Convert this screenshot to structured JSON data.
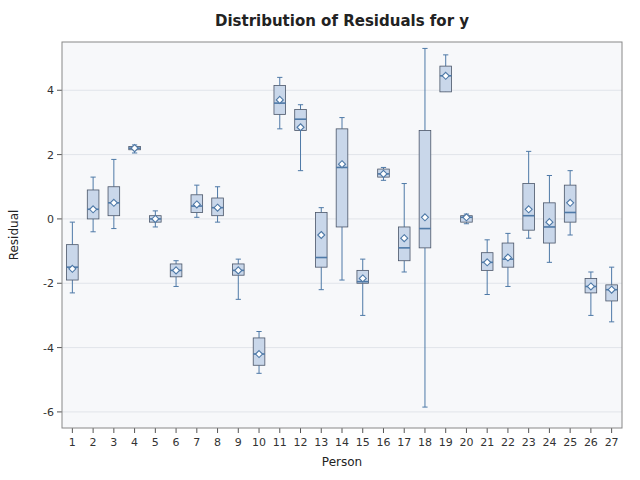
{
  "chart_data": {
    "type": "box",
    "title": "Distribution of Residuals for y",
    "x_label": "Person",
    "y_label": "Residual",
    "ylim": [
      -6.5,
      5.5
    ],
    "yticks": [
      -6,
      -4,
      -2,
      0,
      2,
      4
    ],
    "grid": true,
    "marker": "diamond",
    "categories": [
      "1",
      "2",
      "3",
      "4",
      "5",
      "6",
      "7",
      "8",
      "9",
      "10",
      "11",
      "12",
      "13",
      "14",
      "15",
      "16",
      "17",
      "18",
      "19",
      "20",
      "21",
      "22",
      "23",
      "24",
      "25",
      "26",
      "27"
    ],
    "boxes": [
      {
        "q1": -1.9,
        "median": -1.5,
        "q3": -0.8,
        "whislo": -2.3,
        "whishi": -0.1,
        "mean": -1.55
      },
      {
        "q1": 0.0,
        "median": 0.3,
        "q3": 0.9,
        "whislo": -0.4,
        "whishi": 1.3,
        "mean": 0.3
      },
      {
        "q1": 0.1,
        "median": 0.5,
        "q3": 1.0,
        "whislo": -0.3,
        "whishi": 1.85,
        "mean": 0.5
      },
      {
        "q1": 2.15,
        "median": 2.2,
        "q3": 2.25,
        "whislo": 2.05,
        "whishi": 2.3,
        "mean": 2.2
      },
      {
        "q1": -0.1,
        "median": 0.0,
        "q3": 0.1,
        "whislo": -0.25,
        "whishi": 0.25,
        "mean": 0.0
      },
      {
        "q1": -1.8,
        "median": -1.6,
        "q3": -1.4,
        "whislo": -2.1,
        "whishi": -1.3,
        "mean": -1.6
      },
      {
        "q1": 0.2,
        "median": 0.4,
        "q3": 0.75,
        "whislo": 0.05,
        "whishi": 1.05,
        "mean": 0.45
      },
      {
        "q1": 0.1,
        "median": 0.35,
        "q3": 0.65,
        "whislo": -0.1,
        "whishi": 1.0,
        "mean": 0.35
      },
      {
        "q1": -1.75,
        "median": -1.6,
        "q3": -1.4,
        "whislo": -2.5,
        "whishi": -1.25,
        "mean": -1.6
      },
      {
        "q1": -4.55,
        "median": -4.2,
        "q3": -3.7,
        "whislo": -4.8,
        "whishi": -3.5,
        "mean": -4.2
      },
      {
        "q1": 3.25,
        "median": 3.6,
        "q3": 4.15,
        "whislo": 2.8,
        "whishi": 4.4,
        "mean": 3.7
      },
      {
        "q1": 2.75,
        "median": 3.1,
        "q3": 3.4,
        "whislo": 1.5,
        "whishi": 3.55,
        "mean": 2.85
      },
      {
        "q1": -1.5,
        "median": -1.2,
        "q3": 0.2,
        "whislo": -2.2,
        "whishi": 0.35,
        "mean": -0.5
      },
      {
        "q1": -0.25,
        "median": 1.6,
        "q3": 2.8,
        "whislo": -1.9,
        "whishi": 3.15,
        "mean": 1.7
      },
      {
        "q1": -2.0,
        "median": -1.95,
        "q3": -1.6,
        "whislo": -3.0,
        "whishi": -1.25,
        "mean": -1.85
      },
      {
        "q1": 1.3,
        "median": 1.4,
        "q3": 1.55,
        "whislo": 1.2,
        "whishi": 1.6,
        "mean": 1.4
      },
      {
        "q1": -1.3,
        "median": -0.9,
        "q3": -0.25,
        "whislo": -1.65,
        "whishi": 1.1,
        "mean": -0.6
      },
      {
        "q1": -0.9,
        "median": -0.3,
        "q3": 2.75,
        "whislo": -5.85,
        "whishi": 5.3,
        "mean": 0.05
      },
      {
        "q1": 3.95,
        "median": 4.45,
        "q3": 4.75,
        "whislo": 4.1,
        "whishi": 5.1,
        "mean": 4.45
      },
      {
        "q1": -0.1,
        "median": 0.05,
        "q3": 0.1,
        "whislo": -0.15,
        "whishi": 0.15,
        "mean": 0.05
      },
      {
        "q1": -1.6,
        "median": -1.35,
        "q3": -1.05,
        "whislo": -2.35,
        "whishi": -0.65,
        "mean": -1.35
      },
      {
        "q1": -1.5,
        "median": -1.25,
        "q3": -0.75,
        "whislo": -2.1,
        "whishi": -0.45,
        "mean": -1.2
      },
      {
        "q1": -0.35,
        "median": 0.1,
        "q3": 1.1,
        "whislo": -0.6,
        "whishi": 2.1,
        "mean": 0.3
      },
      {
        "q1": -0.75,
        "median": -0.25,
        "q3": 0.5,
        "whislo": -1.35,
        "whishi": 1.35,
        "mean": -0.1
      },
      {
        "q1": -0.1,
        "median": 0.2,
        "q3": 1.05,
        "whislo": -0.5,
        "whishi": 1.5,
        "mean": 0.5
      },
      {
        "q1": -2.3,
        "median": -2.1,
        "q3": -1.85,
        "whislo": -3.0,
        "whishi": -1.65,
        "mean": -2.1
      },
      {
        "q1": -2.55,
        "median": -2.2,
        "q3": -2.05,
        "whislo": -3.2,
        "whishi": -1.5,
        "mean": -2.2
      }
    ]
  }
}
